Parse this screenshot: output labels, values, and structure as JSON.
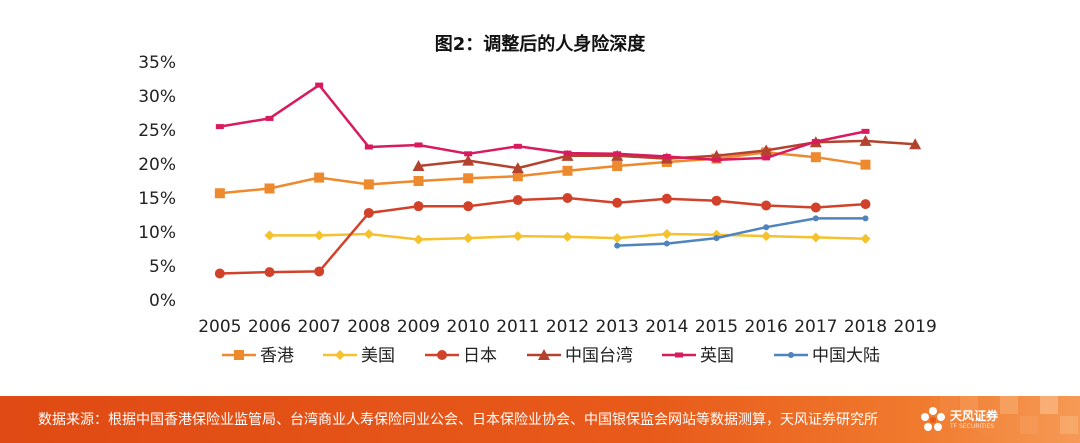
{
  "chart_data": {
    "type": "line",
    "title": "图2：调整后的人身险深度",
    "xlabel": "",
    "ylabel": "",
    "x": [
      "2005",
      "2006",
      "2007",
      "2008",
      "2009",
      "2010",
      "2011",
      "2012",
      "2013",
      "2014",
      "2015",
      "2016",
      "2017",
      "2018",
      "2019"
    ],
    "y_ticks": [
      "0%",
      "5%",
      "10%",
      "15%",
      "20%",
      "25%",
      "30%",
      "35%"
    ],
    "ylim": [
      0,
      35
    ],
    "grid": false,
    "legend_position": "bottom",
    "series": [
      {
        "name": "香港",
        "color": "#ee8a2e",
        "marker": "square",
        "values": [
          15.7,
          16.4,
          18.0,
          17.0,
          17.5,
          17.9,
          18.2,
          19.0,
          19.7,
          20.3,
          20.8,
          21.7,
          21.0,
          19.9,
          null
        ]
      },
      {
        "name": "美国",
        "color": "#f5c12c",
        "marker": "diamond",
        "values": [
          null,
          9.5,
          9.5,
          9.7,
          8.9,
          9.1,
          9.4,
          9.3,
          9.1,
          9.7,
          9.6,
          9.4,
          9.2,
          9.0,
          null
        ]
      },
      {
        "name": "日本",
        "color": "#d2422a",
        "marker": "circle",
        "values": [
          3.9,
          4.1,
          4.2,
          12.8,
          13.8,
          13.8,
          14.7,
          15.0,
          14.3,
          14.9,
          14.6,
          13.9,
          13.6,
          14.1,
          null
        ]
      },
      {
        "name": "中国台湾",
        "color": "#b3432e",
        "marker": "triangle",
        "values": [
          null,
          null,
          null,
          null,
          19.7,
          20.5,
          19.4,
          21.2,
          21.2,
          20.8,
          21.2,
          22.0,
          23.2,
          23.4,
          22.9
        ]
      },
      {
        "name": "英国",
        "color": "#d81b5e",
        "marker": "dash",
        "values": [
          25.5,
          26.7,
          31.6,
          22.5,
          22.8,
          21.5,
          22.6,
          21.6,
          21.5,
          21.1,
          20.6,
          20.9,
          23.3,
          24.8,
          null
        ]
      },
      {
        "name": "中国大陆",
        "color": "#4f84bd",
        "marker": "dot",
        "values": [
          null,
          null,
          null,
          null,
          null,
          null,
          null,
          null,
          8.0,
          8.3,
          9.1,
          10.7,
          12.0,
          12.0,
          null
        ]
      }
    ]
  },
  "footer": {
    "source": "数据来源：根据中国香港保险业监管局、台湾商业人寿保险同业公会、日本保险业协会、中国银保监会网站等数据测算，天风证券研究所",
    "logo_name": "天风证券",
    "logo_sub": "TF SECURITIES",
    "background_color": "#e85a1a"
  }
}
